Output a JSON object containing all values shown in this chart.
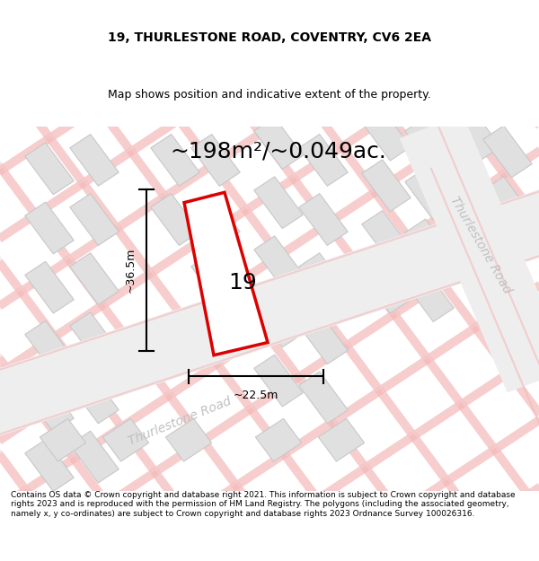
{
  "title": "19, THURLESTONE ROAD, COVENTRY, CV6 2EA",
  "subtitle": "Map shows position and indicative extent of the property.",
  "area_label": "~198m²/~0.049ac.",
  "width_label": "~22.5m",
  "height_label": "~36.5m",
  "number_label": "19",
  "road_label_bottom": "Thurlestone Road",
  "road_label_right": "Thurlestone Road",
  "footer": "Contains OS data © Crown copyright and database right 2021. This information is subject to Crown copyright and database rights 2023 and is reproduced with the permission of HM Land Registry. The polygons (including the associated geometry, namely x, y co-ordinates) are subject to Crown copyright and database rights 2023 Ordnance Survey 100026316.",
  "bg_color": "#ffffff",
  "map_bg": "#f7f7f7",
  "block_fill": "#e0e0e0",
  "block_edge": "#c8c8c8",
  "road_thick_color": "#f5b8b8",
  "road_thin_color": "#f5d0d0",
  "plot_edge": "#dd0000",
  "plot_fill": "#ffffff",
  "dim_color": "#000000",
  "text_color": "#000000",
  "road_text_color": "#c0c0c0",
  "title_fontsize": 10,
  "subtitle_fontsize": 9,
  "area_fontsize": 18,
  "num_fontsize": 18,
  "dim_fontsize": 9,
  "footer_fontsize": 6.5,
  "road_label_fontsize": 10
}
